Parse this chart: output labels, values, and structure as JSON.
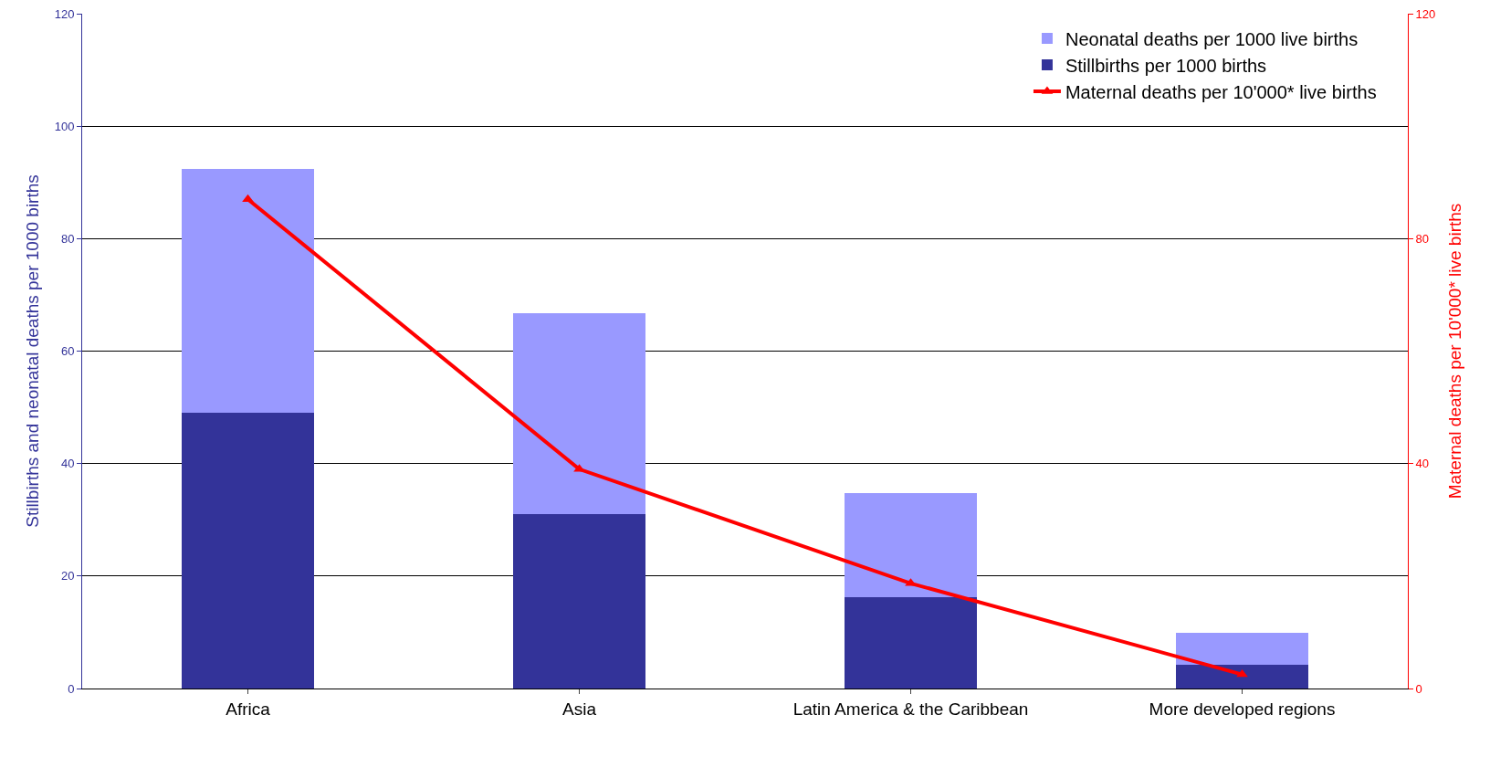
{
  "chart_data": {
    "type": "bar",
    "stacked": true,
    "categories": [
      "Africa",
      "Asia",
      "Latin America & the Caribbean",
      "More developed regions"
    ],
    "series": [
      {
        "name": "Stillbirths per 1000 births",
        "color": "#333399",
        "values": [
          49,
          31,
          16.2,
          4.2
        ]
      },
      {
        "name": "Neonatal deaths per 1000 live births",
        "color": "#9999ff",
        "values": [
          43.4,
          35.8,
          18.5,
          5.7
        ]
      },
      {
        "name": "Maternal deaths per 10'000* live births",
        "color": "#ff0000",
        "type": "line",
        "axis": "y2",
        "marker": "triangle",
        "values": [
          87,
          39,
          18.7,
          2.5
        ]
      }
    ],
    "ylabel": "Stillbirths and neonatal deaths per 1000 births",
    "y2label": "Maternal deaths per 10'000* live births",
    "ylim": [
      0,
      120
    ],
    "yticks": [
      0,
      20,
      40,
      60,
      80,
      100,
      120
    ],
    "y2lim": [
      0,
      120
    ],
    "y2ticks": [
      0,
      40,
      80,
      120
    ],
    "grid": "y",
    "legend": "top right"
  }
}
